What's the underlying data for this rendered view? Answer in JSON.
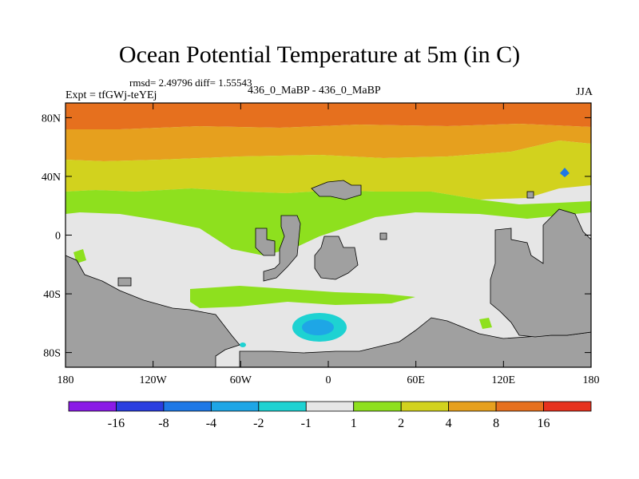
{
  "chart_data": {
    "type": "heatmap",
    "title": "Ocean Potential Temperature at 5m (in C)",
    "stats": "rmsd= 2.49796 diff= 1.55543",
    "experiment": "Expt = tfGWj-teYEj",
    "runs": "436_0_MaBP - 436_0_MaBP",
    "season": "JJA",
    "xlim": [
      -180,
      180
    ],
    "ylim": [
      -90,
      90
    ],
    "x_ticks": [
      {
        "value": -180,
        "label": "180"
      },
      {
        "value": -120,
        "label": "120W"
      },
      {
        "value": -60,
        "label": "60W"
      },
      {
        "value": 0,
        "label": "0"
      },
      {
        "value": 60,
        "label": "60E"
      },
      {
        "value": 120,
        "label": "120E"
      },
      {
        "value": 180,
        "label": "180"
      }
    ],
    "y_ticks": [
      {
        "value": 80,
        "label": "80N"
      },
      {
        "value": 40,
        "label": "40N"
      },
      {
        "value": 0,
        "label": "0"
      },
      {
        "value": -40,
        "label": "40S"
      },
      {
        "value": -80,
        "label": "80S"
      }
    ],
    "colorbar": {
      "levels": [
        "-16",
        "-8",
        "-4",
        "-2",
        "-1",
        "1",
        "2",
        "4",
        "8",
        "16"
      ],
      "colors": [
        "#8a1ae6",
        "#2a3ee0",
        "#1e78e6",
        "#1ea6e6",
        "#1ed2d2",
        "#e6e6e6",
        "#8ee01e",
        "#d2d21e",
        "#e6a01e",
        "#e6701e",
        "#e6321e"
      ]
    },
    "land_color": "#a0a0a0"
  }
}
